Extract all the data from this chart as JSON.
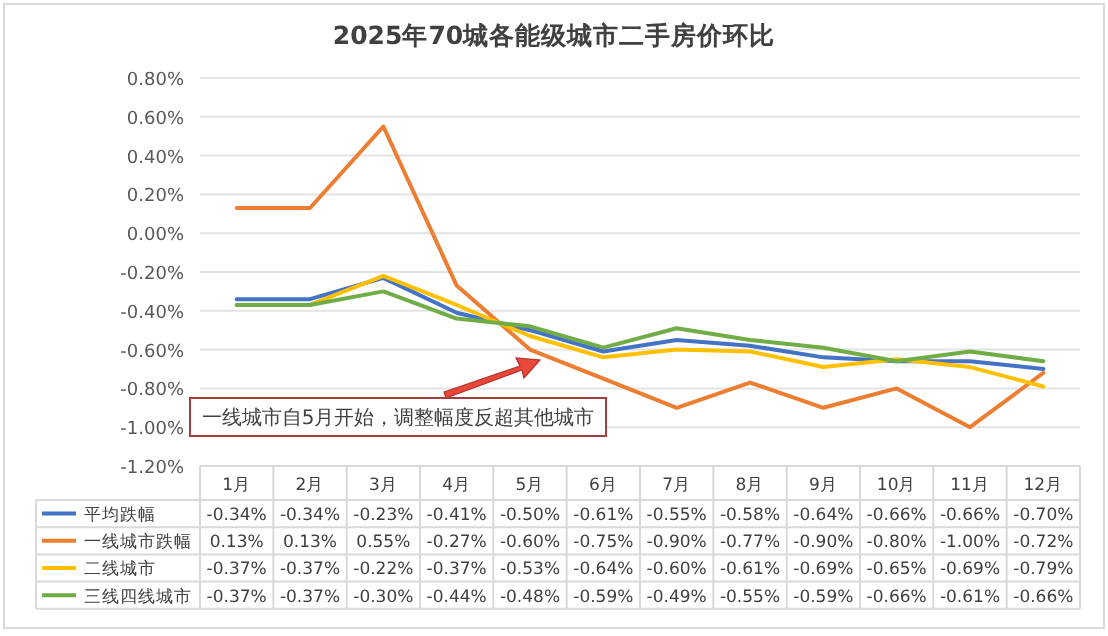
{
  "chart_data": {
    "type": "line",
    "title": "2025年70城各能级城市二手房价环比",
    "categories": [
      "1月",
      "2月",
      "3月",
      "4月",
      "5月",
      "6月",
      "7月",
      "8月",
      "9月",
      "10月",
      "11月",
      "12月"
    ],
    "series": [
      {
        "name": "平均跌幅",
        "color": "#4472c4",
        "values": [
          -0.34,
          -0.34,
          -0.23,
          -0.41,
          -0.5,
          -0.61,
          -0.55,
          -0.58,
          -0.64,
          -0.66,
          -0.66,
          -0.7
        ],
        "value_labels": [
          "-0.34%",
          "-0.34%",
          "-0.23%",
          "-0.41%",
          "-0.50%",
          "-0.61%",
          "-0.55%",
          "-0.58%",
          "-0.64%",
          "-0.66%",
          "-0.66%",
          "-0.70%"
        ]
      },
      {
        "name": "一线城市跌幅",
        "color": "#ed7d31",
        "values": [
          0.13,
          0.13,
          0.55,
          -0.27,
          -0.6,
          -0.75,
          -0.9,
          -0.77,
          -0.9,
          -0.8,
          -1.0,
          -0.72
        ],
        "value_labels": [
          "0.13%",
          "0.13%",
          "0.55%",
          "-0.27%",
          "-0.60%",
          "-0.75%",
          "-0.90%",
          "-0.77%",
          "-0.90%",
          "-0.80%",
          "-1.00%",
          "-0.72%"
        ]
      },
      {
        "name": "二线城市",
        "color": "#ffc000",
        "values": [
          -0.37,
          -0.37,
          -0.22,
          -0.37,
          -0.53,
          -0.64,
          -0.6,
          -0.61,
          -0.69,
          -0.65,
          -0.69,
          -0.79
        ],
        "value_labels": [
          "-0.37%",
          "-0.37%",
          "-0.22%",
          "-0.37%",
          "-0.53%",
          "-0.64%",
          "-0.60%",
          "-0.61%",
          "-0.69%",
          "-0.65%",
          "-0.69%",
          "-0.79%"
        ]
      },
      {
        "name": "三线四线城市",
        "color": "#70ad47",
        "values": [
          -0.37,
          -0.37,
          -0.3,
          -0.44,
          -0.48,
          -0.59,
          -0.49,
          -0.55,
          -0.59,
          -0.66,
          -0.61,
          -0.66
        ],
        "value_labels": [
          "-0.37%",
          "-0.37%",
          "-0.30%",
          "-0.44%",
          "-0.48%",
          "-0.59%",
          "-0.49%",
          "-0.55%",
          "-0.59%",
          "-0.66%",
          "-0.61%",
          "-0.66%"
        ]
      }
    ],
    "ylim": [
      -1.2,
      0.8
    ],
    "yticks": [
      {
        "value": 0.8,
        "label": "0.80%"
      },
      {
        "value": 0.6,
        "label": "0.60%"
      },
      {
        "value": 0.4,
        "label": "0.40%"
      },
      {
        "value": 0.2,
        "label": "0.20%"
      },
      {
        "value": 0,
        "label": "0.00%"
      },
      {
        "value": -0.2,
        "label": "-0.20%"
      },
      {
        "value": -0.4,
        "label": "-0.40%"
      },
      {
        "value": -0.6,
        "label": "-0.60%"
      },
      {
        "value": -0.8,
        "label": "-0.80%"
      },
      {
        "value": -1.0,
        "label": "-1.00%"
      },
      {
        "value": -1.2,
        "label": "-1.20%"
      }
    ],
    "grid": "y",
    "legend": "bottom",
    "marker": "none",
    "line_style": "solid",
    "annotations": [
      "一线城市自5月开始，调整幅度反超其他城市"
    ]
  }
}
